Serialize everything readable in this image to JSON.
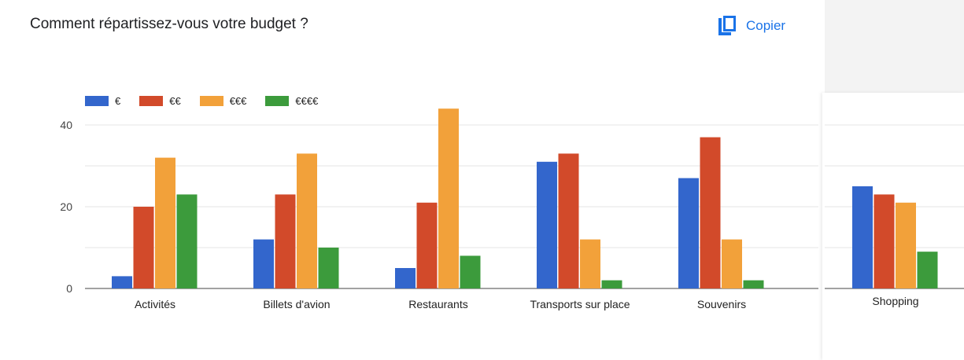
{
  "title": "Comment répartissez-vous votre budget ?",
  "copy_label": "Copier",
  "copy_icon": "copy-icon",
  "colors": {
    "accent": "#1a73e8",
    "grid": "#e6e6e6",
    "axis": "#444444"
  },
  "chart_data": {
    "type": "bar",
    "title": "Comment répartissez-vous votre budget ?",
    "categories": [
      "Activités",
      "Billets d'avion",
      "Restaurants",
      "Transports sur place",
      "Souvenirs",
      "Shopping"
    ],
    "series": [
      {
        "name": "€",
        "color": "#3366cc",
        "values": [
          3,
          12,
          5,
          31,
          27,
          25
        ]
      },
      {
        "name": "€€",
        "color": "#d24a2a",
        "values": [
          20,
          23,
          21,
          33,
          37,
          23
        ]
      },
      {
        "name": "€€€",
        "color": "#f2a13a",
        "values": [
          32,
          33,
          44,
          12,
          12,
          21
        ]
      },
      {
        "name": "€€€€",
        "color": "#3c9b3c",
        "values": [
          23,
          10,
          8,
          2,
          2,
          9
        ]
      }
    ],
    "yticks": [
      0,
      20,
      40
    ],
    "ylim": [
      0,
      50
    ],
    "legend_position": "top-left",
    "grid": true
  }
}
